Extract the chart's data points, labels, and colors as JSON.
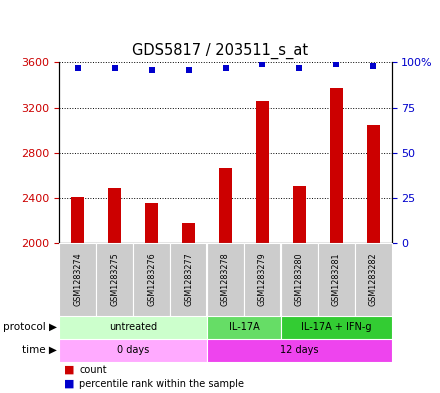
{
  "title": "GDS5817 / 203511_s_at",
  "samples": [
    "GSM1283274",
    "GSM1283275",
    "GSM1283276",
    "GSM1283277",
    "GSM1283278",
    "GSM1283279",
    "GSM1283280",
    "GSM1283281",
    "GSM1283282"
  ],
  "counts": [
    2410,
    2490,
    2360,
    2180,
    2670,
    3260,
    2510,
    3370,
    3050
  ],
  "percentile_ranks": [
    97,
    97,
    96,
    96,
    97,
    99,
    97,
    99,
    98
  ],
  "ylim_left": [
    2000,
    3600
  ],
  "ylim_right": [
    0,
    100
  ],
  "yticks_left": [
    2000,
    2400,
    2800,
    3200,
    3600
  ],
  "yticks_right": [
    0,
    25,
    50,
    75,
    100
  ],
  "bar_color": "#cc0000",
  "dot_color": "#0000cc",
  "protocol_groups": [
    {
      "label": "untreated",
      "start": 0,
      "end": 4,
      "color": "#ccffcc"
    },
    {
      "label": "IL-17A",
      "start": 4,
      "end": 6,
      "color": "#66dd66"
    },
    {
      "label": "IL-17A + IFN-g",
      "start": 6,
      "end": 9,
      "color": "#33cc33"
    }
  ],
  "time_groups": [
    {
      "label": "0 days",
      "start": 0,
      "end": 4,
      "color": "#ffaaff"
    },
    {
      "label": "12 days",
      "start": 4,
      "end": 9,
      "color": "#ee44ee"
    }
  ],
  "grid_color": "#000000",
  "background_color": "#ffffff",
  "bar_width": 0.35,
  "left_axis_color": "#cc0000",
  "right_axis_color": "#0000cc",
  "sample_bg_color": "#cccccc",
  "sample_border_color": "#ffffff"
}
